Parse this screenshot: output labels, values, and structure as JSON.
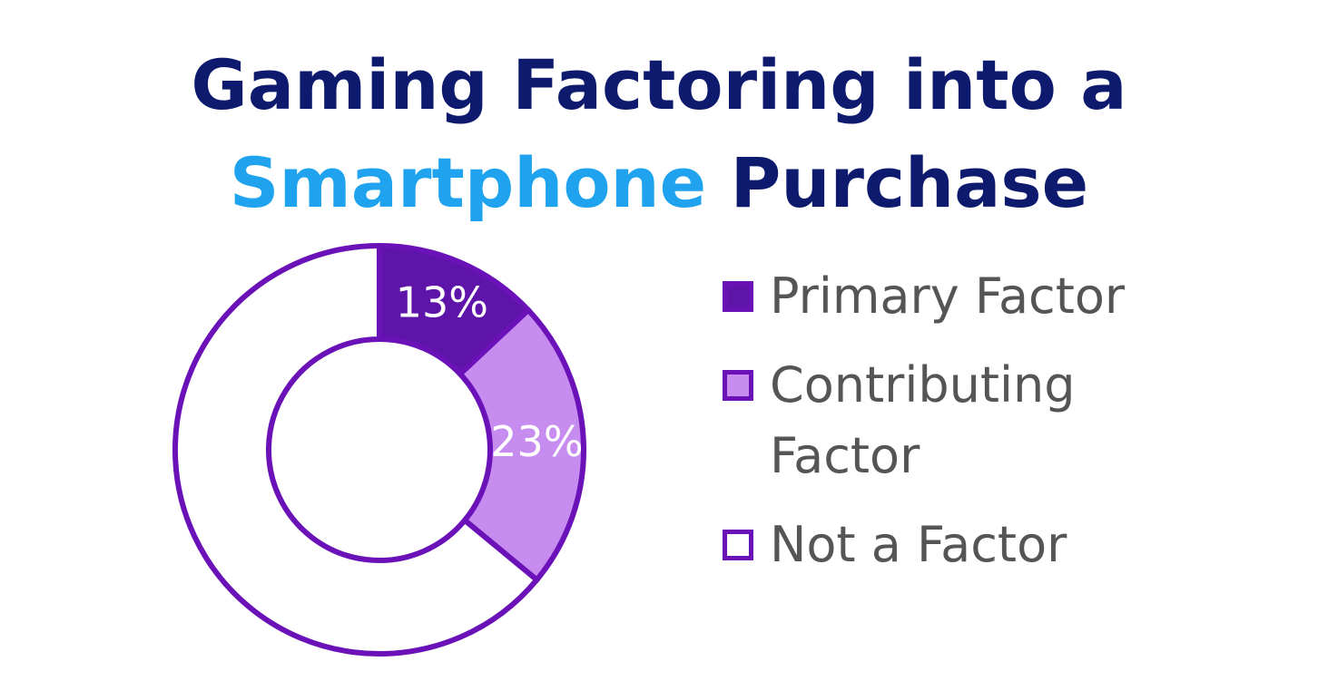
{
  "chart_data": {
    "type": "donut",
    "title": [
      {
        "text": "Gaming Factoring into a",
        "color": "#0d1a6e"
      },
      {
        "text": "Smartphone",
        "color": "#1fa3ef"
      },
      {
        "text": "Purchase",
        "color": "#0d1a6e"
      }
    ],
    "categories": [
      "Primary Factor",
      "Contributing Factor",
      "Not a Factor"
    ],
    "values": [
      13,
      23,
      64
    ],
    "value_labels": [
      "13%",
      "23%",
      null
    ],
    "colors": [
      "#5e14a8",
      "#c68cf0",
      "#ffffff"
    ],
    "edge_color": "#6a12b8",
    "legend": "right"
  }
}
